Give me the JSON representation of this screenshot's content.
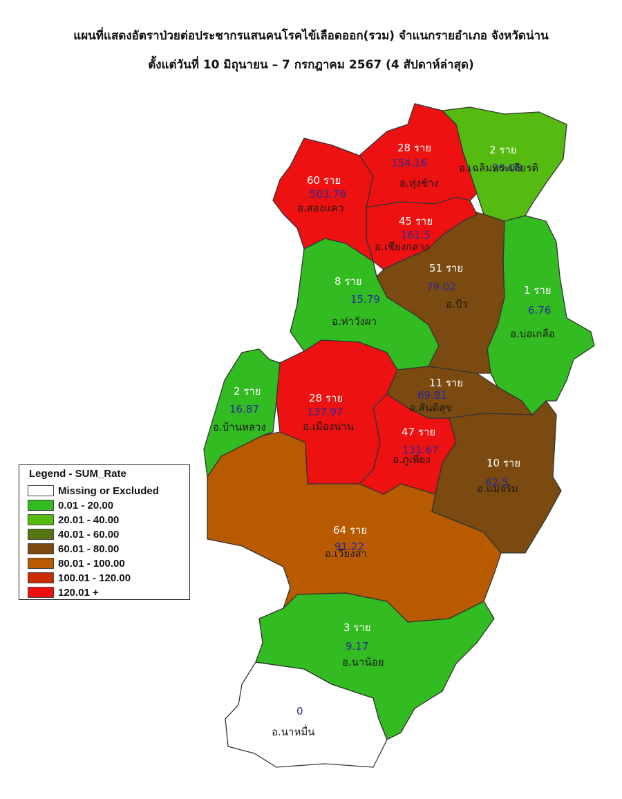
{
  "title_line1": "แผนที่แสดงอัตราป่วยต่อประชากรแสนคนโรคไข้เลือดออก(รวม) จำแนกรายอำเภอ จังหวัดน่าน",
  "title_line2": "ตั้งแต่วันที่ 10 มิถุนายน – 7 กรกฎาคม 2567 (4 สัปดาห์ล่าสุด)",
  "legend": {
    "title": "Legend - SUM_Rate",
    "items": [
      {
        "label": "Missing or Excluded",
        "color": "#ffffff"
      },
      {
        "label": "0.01 - 20.00",
        "color": "#33bb22"
      },
      {
        "label": "20.01 - 40.00",
        "color": "#55bb11"
      },
      {
        "label": "40.01 - 60.00",
        "color": "#557711"
      },
      {
        "label": "60.01 - 80.00",
        "color": "#7a4a10"
      },
      {
        "label": "80.01 - 100.00",
        "color": "#b85a00"
      },
      {
        "label": "100.01 - 120.00",
        "color": "#cc2a00"
      },
      {
        "label": "120.01 +",
        "color": "#ee1111"
      }
    ]
  },
  "districts": {
    "song_khwae": {
      "cases": "60 ราย",
      "rate": "503.78",
      "name": "อ.สองแคว",
      "color": "#ee1111"
    },
    "thung_chang": {
      "cases": "28 ราย",
      "rate": "154.16",
      "name": "อ.ทุ่งช้าง",
      "color": "#ee1111"
    },
    "chaloem_phra_kiat": {
      "cases": "2 ราย",
      "rate": "20.08",
      "name": "อ.เฉลิมพระเกียรติ",
      "color": "#55bb11"
    },
    "chiang_klang": {
      "cases": "45 ราย",
      "rate": "161.5",
      "name": "อ.เชียงกลาง",
      "color": "#ee1111"
    },
    "pua": {
      "cases": "51 ราย",
      "rate": "79.02",
      "name": "อ.ปัว",
      "color": "#7a4a10"
    },
    "tha_wang_pha": {
      "cases": "8 ราย",
      "rate": "15.79",
      "name": "อ.ท่าวังผา",
      "color": "#33bb22"
    },
    "bo_kluea": {
      "cases": "1 ราย",
      "rate": "6.76",
      "name": "อ.บ่อเกลือ",
      "color": "#33bb22"
    },
    "ban_luang": {
      "cases": "2 ราย",
      "rate": "16.87",
      "name": "อ.บ้านหลวง",
      "color": "#33bb22"
    },
    "mueang_nan": {
      "cases": "28 ราย",
      "rate": "137.97",
      "name": "อ.เมืองน่าน",
      "color": "#ee1111"
    },
    "santi_suk": {
      "cases": "11 ราย",
      "rate": "69.81",
      "name": "อ.สันติสุข",
      "color": "#7a4a10"
    },
    "phu_phiang": {
      "cases": "47 ราย",
      "rate": "131.67",
      "name": "อ.ภูเพียง",
      "color": "#ee1111"
    },
    "mae_charim": {
      "cases": "10 ราย",
      "rate": "62.5",
      "name": "อ.แม่จริม",
      "color": "#7a4a10"
    },
    "wiang_sa": {
      "cases": "64 ราย",
      "rate": "91.22",
      "name": "อ.เวียงสา",
      "color": "#b85a00"
    },
    "na_noi": {
      "cases": "3 ราย",
      "rate": "9.17",
      "name": "อ.นาน้อย",
      "color": "#33bb22"
    },
    "na_muen": {
      "cases": "",
      "rate": "0",
      "name": "อ.นาหมื่น",
      "color": "#ffffff"
    }
  }
}
